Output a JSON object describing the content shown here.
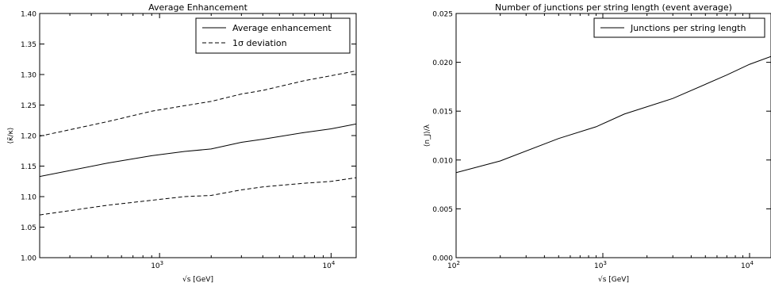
{
  "chart_data": [
    {
      "type": "line",
      "title": "Average Enhancement",
      "xlabel": "√s [GeV]",
      "ylabel": "⟨κ̃/κ⟩",
      "x_scale": "log",
      "xlim": [
        200,
        14000
      ],
      "ylim": [
        1.0,
        1.4
      ],
      "grid": false,
      "legend_position": "top-right",
      "y_ticks": [
        "1.00",
        "1.05",
        "1.10",
        "1.15",
        "1.20",
        "1.25",
        "1.30",
        "1.35",
        "1.40"
      ],
      "y_tick_values": [
        1.0,
        1.05,
        1.1,
        1.15,
        1.2,
        1.25,
        1.3,
        1.35,
        1.4
      ],
      "x_ticks": [
        {
          "value": 1000,
          "base": "10",
          "exp": "3"
        },
        {
          "value": 10000,
          "base": "10",
          "exp": "4"
        }
      ],
      "series": [
        {
          "name": "Average enhancement",
          "style": "solid",
          "x": [
            200,
            500,
            900,
            1400,
            2000,
            3000,
            4000,
            7000,
            10000,
            14000
          ],
          "y": [
            1.133,
            1.155,
            1.167,
            1.174,
            1.178,
            1.189,
            1.194,
            1.205,
            1.211,
            1.219
          ]
        },
        {
          "name": "1σ deviation",
          "style": "dashed",
          "x": [
            200,
            500,
            900,
            1400,
            2000,
            3000,
            4000,
            7000,
            10000,
            14000
          ],
          "y": [
            1.199,
            1.223,
            1.24,
            1.249,
            1.256,
            1.268,
            1.274,
            1.29,
            1.298,
            1.306
          ]
        },
        {
          "name": "",
          "style": "dashed",
          "x": [
            200,
            500,
            900,
            1400,
            2000,
            3000,
            4000,
            7000,
            10000,
            14000
          ],
          "y": [
            1.07,
            1.086,
            1.094,
            1.1,
            1.102,
            1.111,
            1.116,
            1.122,
            1.125,
            1.131
          ]
        }
      ]
    },
    {
      "type": "line",
      "title": "Number of junctions per string length (event average)",
      "xlabel": "√s [GeV]",
      "ylabel": "⟨n_J⟩/λ",
      "x_scale": "log",
      "xlim": [
        100,
        14000
      ],
      "ylim": [
        0.0,
        0.025
      ],
      "grid": false,
      "legend_position": "top-right",
      "y_ticks": [
        "0.000",
        "0.005",
        "0.010",
        "0.015",
        "0.020",
        "0.025"
      ],
      "y_tick_values": [
        0.0,
        0.005,
        0.01,
        0.015,
        0.02,
        0.025
      ],
      "x_ticks": [
        {
          "value": 100,
          "base": "10",
          "exp": "2"
        },
        {
          "value": 1000,
          "base": "10",
          "exp": "3"
        },
        {
          "value": 10000,
          "base": "10",
          "exp": "4"
        }
      ],
      "series": [
        {
          "name": "Junctions per string length",
          "style": "solid",
          "x": [
            100,
            200,
            500,
            900,
            1400,
            3000,
            7000,
            10000,
            14000
          ],
          "y": [
            0.0087,
            0.0099,
            0.0122,
            0.0134,
            0.0147,
            0.0163,
            0.0187,
            0.0198,
            0.0206
          ]
        }
      ]
    }
  ]
}
